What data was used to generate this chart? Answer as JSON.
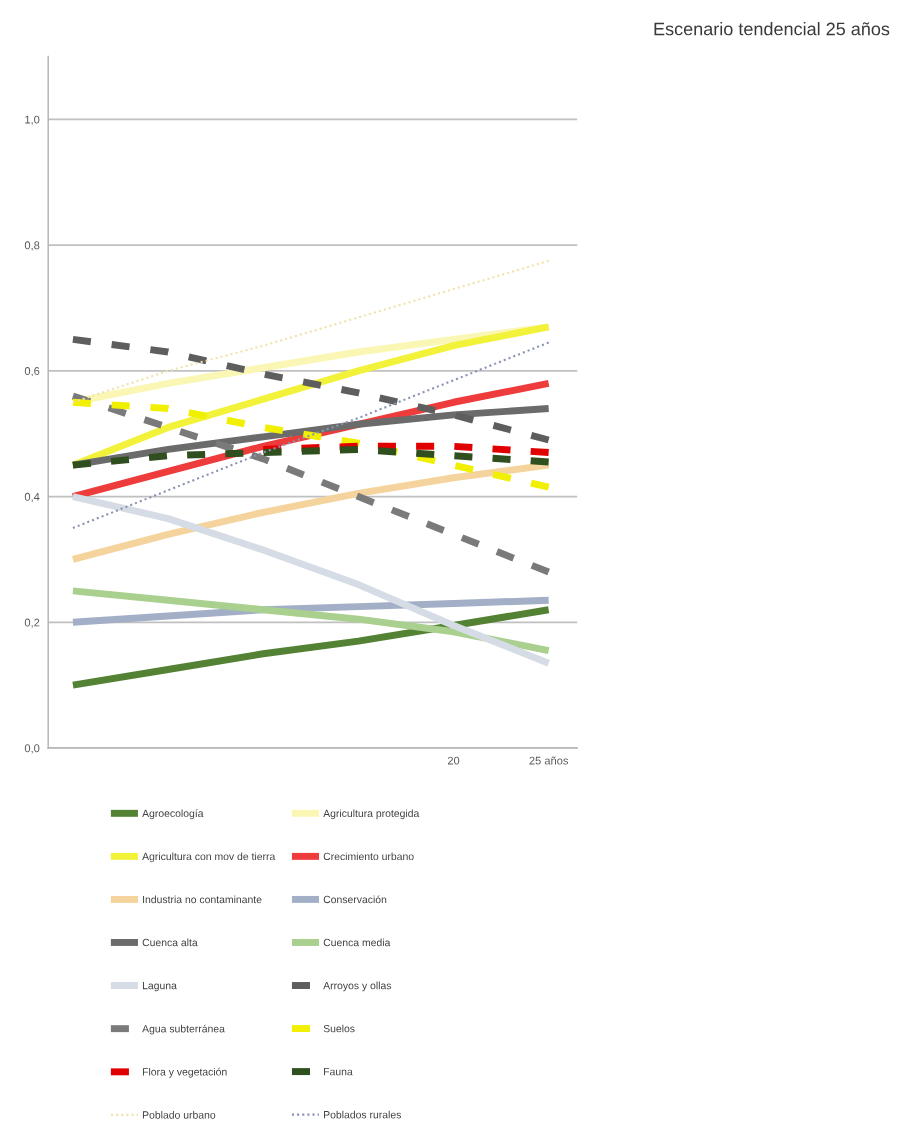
{
  "chart_data": {
    "type": "line",
    "title": "Escenario tendencial 25 años",
    "x": [
      0,
      5,
      10,
      15,
      20,
      25
    ],
    "xlim": [
      -1.3,
      26.5
    ],
    "xticks": [
      {
        "value": 20,
        "label": "20"
      },
      {
        "value": 25,
        "label": "25 años"
      }
    ],
    "ylim": [
      0,
      1.1
    ],
    "yticks": [
      {
        "value": 0,
        "label": "0,0"
      },
      {
        "value": 0.2,
        "label": "0,2"
      },
      {
        "value": 0.4,
        "label": "0,4"
      },
      {
        "value": 0.6,
        "label": "0,6"
      },
      {
        "value": 0.8,
        "label": "0,8"
      },
      {
        "value": 1.0,
        "label": "1,0"
      }
    ],
    "grid": "y",
    "legend": "bottom",
    "series": [
      {
        "name": "Agroecología",
        "color": "#548235",
        "line_style": "solid",
        "values": [
          0.1,
          0.125,
          0.15,
          0.17,
          0.195,
          0.22
        ]
      },
      {
        "name": "Agricultura protegida",
        "color": "#faf6b4",
        "line_style": "solid",
        "values": [
          0.55,
          0.58,
          0.605,
          0.63,
          0.65,
          0.67
        ]
      },
      {
        "name": "Agricultura con mov de tierra",
        "color": "#f2f23a",
        "line_style": "solid",
        "values": [
          0.45,
          0.51,
          0.555,
          0.6,
          0.64,
          0.67
        ]
      },
      {
        "name": "Crecimiento urbano",
        "color": "#ee3b3b",
        "line_style": "solid",
        "values": [
          0.4,
          0.44,
          0.48,
          0.515,
          0.55,
          0.58
        ]
      },
      {
        "name": "Industria no contaminante",
        "color": "#f5d39c",
        "line_style": "solid",
        "values": [
          0.3,
          0.34,
          0.375,
          0.405,
          0.43,
          0.45
        ]
      },
      {
        "name": "Conservación",
        "color": "#a3afc6",
        "line_style": "solid",
        "values": [
          0.2,
          0.21,
          0.22,
          0.225,
          0.23,
          0.235
        ]
      },
      {
        "name": "Cuenca alta",
        "color": "#6b6b6b",
        "line_style": "solid",
        "values": [
          0.45,
          0.475,
          0.495,
          0.515,
          0.53,
          0.54
        ]
      },
      {
        "name": "Cuenca media",
        "color": "#a9d08e",
        "line_style": "solid",
        "values": [
          0.25,
          0.235,
          0.22,
          0.205,
          0.185,
          0.155
        ]
      },
      {
        "name": "Laguna",
        "color": "#d6dce5",
        "line_style": "solid",
        "values": [
          0.4,
          0.365,
          0.315,
          0.26,
          0.195,
          0.135
        ]
      },
      {
        "name": "Arroyos y ollas",
        "color": "#5e5e5e",
        "line_style": "dashed",
        "values": [
          0.65,
          0.63,
          0.595,
          0.565,
          0.53,
          0.49
        ]
      },
      {
        "name": "Agua subterránea",
        "color": "#7a7a7a",
        "line_style": "dashed",
        "values": [
          0.56,
          0.51,
          0.46,
          0.4,
          0.34,
          0.28
        ]
      },
      {
        "name": "Suelos",
        "color": "#f0f000",
        "line_style": "dashed",
        "values": [
          0.55,
          0.54,
          0.51,
          0.485,
          0.45,
          0.415
        ]
      },
      {
        "name": "Flora y vegetación",
        "color": "#e00000",
        "line_style": "dashed",
        "values": [
          null,
          null,
          0.475,
          0.48,
          0.48,
          0.47
        ]
      },
      {
        "name": "Fauna",
        "color": "#2f4f1f",
        "line_style": "dashed",
        "values": [
          0.45,
          0.465,
          0.47,
          0.475,
          0.465,
          0.455
        ]
      },
      {
        "name": "Poblado urbano",
        "color": "#f0e2a8",
        "line_style": "dotted",
        "values": [
          0.55,
          0.6,
          0.64,
          0.685,
          0.73,
          0.775
        ]
      },
      {
        "name": "Poblados rurales",
        "color": "#8a94b2",
        "line_style": "dotted",
        "values": [
          0.35,
          0.41,
          0.47,
          0.525,
          0.585,
          0.645
        ]
      }
    ]
  }
}
